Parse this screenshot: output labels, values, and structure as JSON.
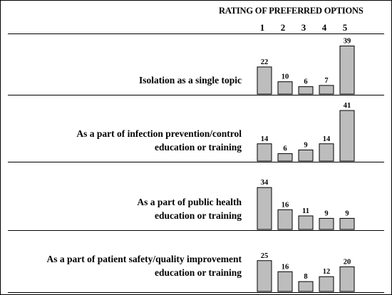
{
  "chart_data": {
    "type": "bar",
    "title": "RATING OF PREFERRED OPTIONS",
    "categories": [
      "1",
      "2",
      "3",
      "4",
      "5"
    ],
    "groups": [
      {
        "label_lines": [
          "Isolation as a single topic"
        ],
        "values": [
          22,
          10,
          6,
          7,
          39
        ]
      },
      {
        "label_lines": [
          "As a part of infection prevention/control",
          "education or training"
        ],
        "values": [
          14,
          6,
          9,
          14,
          41
        ]
      },
      {
        "label_lines": [
          "As a part of public health",
          "education or training"
        ],
        "values": [
          34,
          16,
          11,
          9,
          9
        ]
      },
      {
        "label_lines": [
          "As a part of patient safety/quality improvement",
          "education or training"
        ],
        "values": [
          25,
          16,
          8,
          12,
          20
        ]
      }
    ],
    "bar_color": "#bdbdbd",
    "grid": false
  }
}
